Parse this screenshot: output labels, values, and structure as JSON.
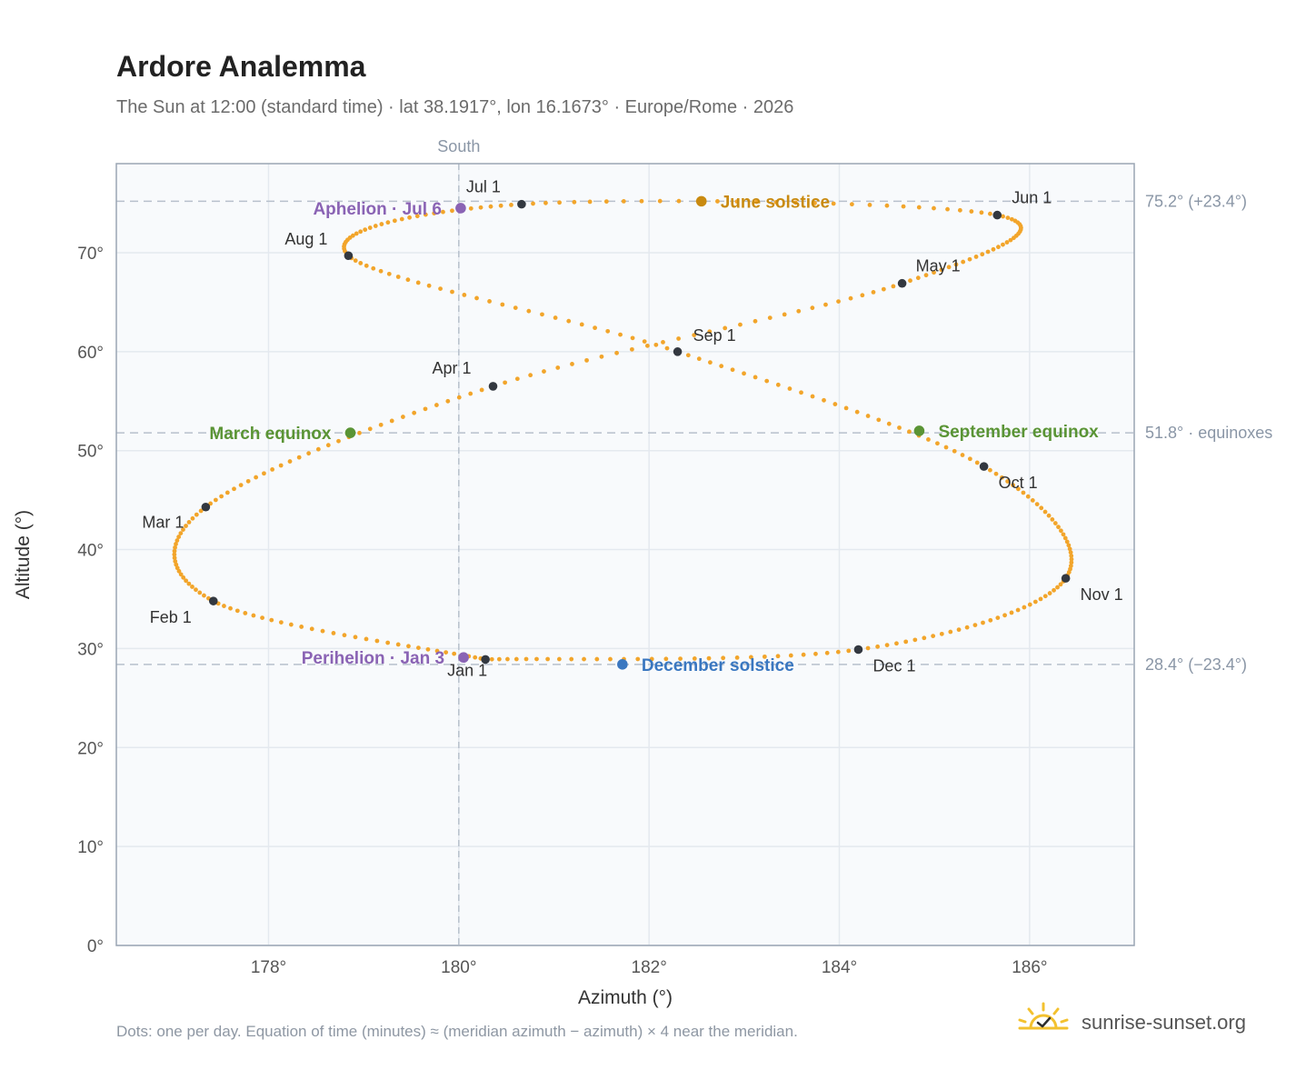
{
  "header": {
    "title": "Ardore Analemma",
    "subtitle": "The Sun at 12:00 (standard time) · lat 38.1917°, lon 16.1673° · Europe/Rome · 2026"
  },
  "footer": {
    "note": "Dots: one per day. Equation of time (minutes) ≈ (meridian azimuth − azimuth) × 4 near the meridian.",
    "brand": "sunrise-sunset.org"
  },
  "chart_data": {
    "type": "scatter",
    "xlabel": "Azimuth (°)",
    "ylabel": "Altitude (°)",
    "xlim": [
      176.4,
      187.1
    ],
    "ylim": [
      0,
      79
    ],
    "xticks": [
      178,
      180,
      182,
      184,
      186
    ],
    "xtick_labels": [
      "178°",
      "180°",
      "182°",
      "184°",
      "186°"
    ],
    "yticks": [
      0,
      10,
      20,
      30,
      40,
      50,
      60,
      70
    ],
    "ytick_labels": [
      "0°",
      "10°",
      "20°",
      "30°",
      "40°",
      "50°",
      "60°",
      "70°"
    ],
    "grid": true,
    "meridian": {
      "azimuth": 180,
      "label": "South"
    },
    "reference_lines": [
      {
        "altitude": 75.2,
        "label": "75.2° (+23.4°)"
      },
      {
        "altitude": 51.8,
        "label": "51.8° · equinoxes"
      },
      {
        "altitude": 28.4,
        "label": "28.4° (−23.4°)"
      }
    ],
    "anchors": [
      {
        "day": 0,
        "az": 180.28,
        "alt": 28.9
      },
      {
        "day": 31,
        "az": 177.42,
        "alt": 34.8
      },
      {
        "day": 59,
        "az": 177.34,
        "alt": 44.3
      },
      {
        "day": 90,
        "az": 180.36,
        "alt": 56.5
      },
      {
        "day": 120,
        "az": 184.66,
        "alt": 66.9
      },
      {
        "day": 151,
        "az": 185.66,
        "alt": 73.8
      },
      {
        "day": 181,
        "az": 180.66,
        "alt": 74.9
      },
      {
        "day": 212,
        "az": 178.84,
        "alt": 69.7
      },
      {
        "day": 243,
        "az": 182.3,
        "alt": 60.0
      },
      {
        "day": 273,
        "az": 185.52,
        "alt": 48.4
      },
      {
        "day": 304,
        "az": 186.38,
        "alt": 37.1
      },
      {
        "day": 334,
        "az": 184.2,
        "alt": 29.9
      },
      {
        "day": 365,
        "az": 180.28,
        "alt": 28.9
      }
    ],
    "month_markers": [
      {
        "label": "Jan 1",
        "az": 180.28,
        "alt": 28.9,
        "dx": -42,
        "dy": 18
      },
      {
        "label": "Feb 1",
        "az": 177.42,
        "alt": 34.8,
        "dx": -70,
        "dy": 24
      },
      {
        "label": "Mar 1",
        "az": 177.34,
        "alt": 44.3,
        "dx": -70,
        "dy": 23
      },
      {
        "label": "Apr 1",
        "az": 180.36,
        "alt": 56.5,
        "dx": -67,
        "dy": -14
      },
      {
        "label": "May 1",
        "az": 184.66,
        "alt": 66.9,
        "dx": 15,
        "dy": -13
      },
      {
        "label": "Jun 1",
        "az": 185.66,
        "alt": 73.8,
        "dx": 16,
        "dy": -13
      },
      {
        "label": "Jul 1",
        "az": 180.66,
        "alt": 74.9,
        "dx": -61,
        "dy": -13
      },
      {
        "label": "Aug 1",
        "az": 178.84,
        "alt": 69.7,
        "dx": -70,
        "dy": -12
      },
      {
        "label": "Sep 1",
        "az": 182.3,
        "alt": 60.0,
        "dx": 17,
        "dy": -12
      },
      {
        "label": "Oct 1",
        "az": 185.52,
        "alt": 48.4,
        "dx": 16,
        "dy": 24
      },
      {
        "label": "Nov 1",
        "az": 186.38,
        "alt": 37.1,
        "dx": 16,
        "dy": 24
      },
      {
        "label": "Dec 1",
        "az": 184.2,
        "alt": 29.9,
        "dx": 16,
        "dy": 24
      }
    ],
    "events": [
      {
        "label": "June solstice",
        "az": 182.55,
        "alt": 75.2,
        "color": "#c98a10",
        "anchor": "start"
      },
      {
        "label": "Aphelion · Jul 6",
        "az": 180.02,
        "alt": 74.5,
        "color": "#8a63b4",
        "anchor": "end"
      },
      {
        "label": "March equinox",
        "az": 178.86,
        "alt": 51.8,
        "color": "#5a9435",
        "anchor": "end"
      },
      {
        "label": "September equinox",
        "az": 184.84,
        "alt": 52.0,
        "color": "#5a9435",
        "anchor": "start"
      },
      {
        "label": "Perihelion · Jan 3",
        "az": 180.05,
        "alt": 29.1,
        "color": "#8a63b4",
        "anchor": "end"
      },
      {
        "label": "December solstice",
        "az": 181.72,
        "alt": 28.4,
        "color": "#3a77c0",
        "anchor": "start"
      }
    ],
    "colors": {
      "path": "#f2a52b",
      "month_marker": "#333840",
      "grid": "#e4e9ef",
      "reference_line": "#b7c0cc",
      "plot_background": "#f8fafc",
      "frame": "#9aa5b4",
      "brand_sun": "#f3c12f"
    }
  }
}
